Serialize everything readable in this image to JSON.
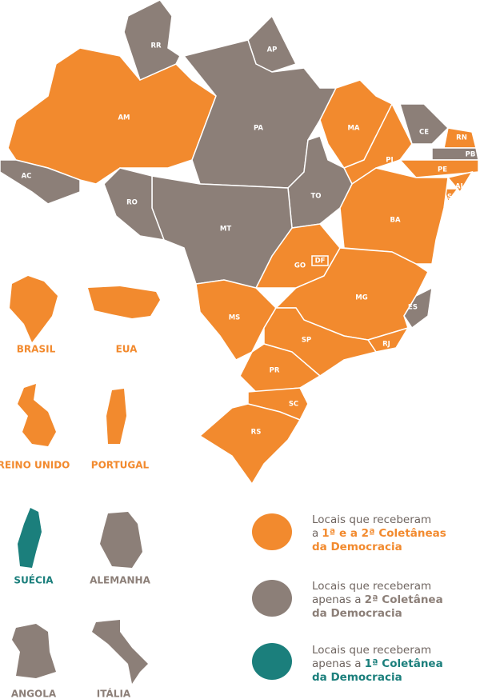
{
  "states": [
    {
      "label": "AM",
      "color": "#f28a2e"
    },
    {
      "label": "AC",
      "color": "#8c7f78"
    },
    {
      "label": "RR",
      "color": "#8c7f78"
    },
    {
      "label": "AP",
      "color": "#8c7f78"
    },
    {
      "label": "PA",
      "color": "#8c7f78"
    },
    {
      "label": "MA",
      "color": "#f28a2e"
    },
    {
      "label": "PI",
      "color": "#f28a2e"
    },
    {
      "label": "CE",
      "color": "#8c7f78"
    },
    {
      "label": "RN",
      "color": "#f28a2e"
    },
    {
      "label": "PB",
      "color": "#8c7f78"
    },
    {
      "label": "PE",
      "color": "#f28a2e"
    },
    {
      "label": "AL",
      "color": "#f28a2e"
    },
    {
      "label": "SE",
      "color": "#f28a2e"
    },
    {
      "label": "BA",
      "color": "#f28a2e"
    },
    {
      "label": "TO",
      "color": "#8c7f78"
    },
    {
      "label": "GO",
      "color": "#f28a2e"
    },
    {
      "label": "DF",
      "color": "#f28a2e"
    },
    {
      "label": "MT",
      "color": "#8c7f78"
    },
    {
      "label": "RO",
      "color": "#8c7f78"
    },
    {
      "label": "MS",
      "color": "#f28a2e"
    },
    {
      "label": "MG",
      "color": "#f28a2e"
    },
    {
      "label": "ES",
      "color": "#8c7f78"
    },
    {
      "label": "RJ",
      "color": "#f28a2e"
    },
    {
      "label": "SP",
      "color": "#f28a2e"
    },
    {
      "label": "PR",
      "color": "#f28a2e"
    },
    {
      "label": "SC",
      "color": "#f28a2e"
    },
    {
      "label": "RS",
      "color": "#f28a2e"
    }
  ],
  "countries": [
    {
      "label": "BRASIL",
      "color": "#f28a2e"
    },
    {
      "label": "EUA",
      "color": "#f28a2e"
    },
    {
      "label": "REINO UNIDO",
      "color": "#f28a2e"
    },
    {
      "label": "PORTUGAL",
      "color": "#f28a2e"
    },
    {
      "label": "SUÉCIA",
      "color": "#1b7f7c"
    },
    {
      "label": "ALEMANHA",
      "color": "#8c7f78"
    },
    {
      "label": "ANGOLA",
      "color": "#8c7f78"
    },
    {
      "label": "ITÁLIA",
      "color": "#8c7f78"
    }
  ],
  "legend": [
    {
      "text": "Locais que receberam a",
      "highlight": "1ª e a 2ª Coletâneas da Democracia",
      "color": "#f28a2e"
    },
    {
      "text": "Locais que receberam apenas a",
      "highlight": "2ª Coletânea da Democracia",
      "color": "#8c7f78"
    },
    {
      "text": "Locais que receberam apenas a",
      "highlight": "1ª Coletânea da Democracia",
      "color": "#1b7f7c"
    }
  ]
}
